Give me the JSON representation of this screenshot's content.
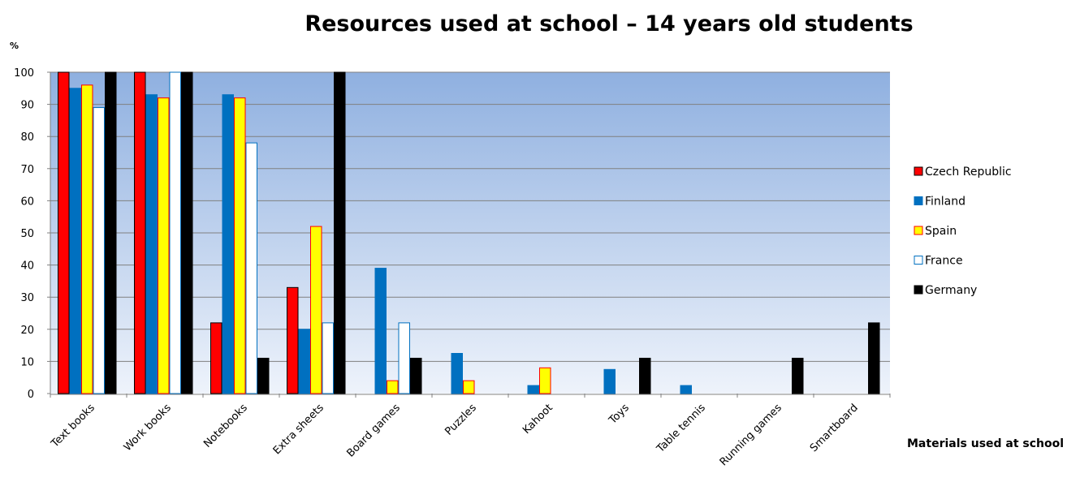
{
  "chart_data": {
    "type": "bar",
    "title": "Resources used at school – 14 years old students",
    "ylabel": "%",
    "xlabel": "Materials used at school",
    "ylim": [
      0,
      100
    ],
    "yticks": [
      0,
      10,
      20,
      30,
      40,
      50,
      60,
      70,
      80,
      90,
      100
    ],
    "grid": true,
    "legend_position": "right",
    "categories": [
      "Text books",
      "Work books",
      "Notebooks",
      "Extra sheets",
      "Board games",
      "Puzzles",
      "Kahoot",
      "Toys",
      "Table tennis",
      "Running games",
      "Smartboard"
    ],
    "series": [
      {
        "name": "Czech Republic",
        "color": "#ff0000",
        "stroke": "#000000",
        "values": [
          100,
          100,
          22,
          33,
          0,
          0,
          0,
          0,
          0,
          0,
          0
        ]
      },
      {
        "name": "Finland",
        "color": "#0070c0",
        "stroke": "#0070c0",
        "values": [
          95,
          93,
          93,
          20,
          39,
          12.5,
          2.5,
          7.5,
          2.5,
          0,
          0
        ]
      },
      {
        "name": "Spain",
        "color": "#ffff00",
        "stroke": "#ff0000",
        "values": [
          96,
          92,
          92,
          52,
          4,
          4,
          8,
          0,
          0,
          0,
          0
        ]
      },
      {
        "name": "France",
        "color": "#ffffff",
        "stroke": "#0070c0",
        "values": [
          89,
          100,
          78,
          22,
          22,
          0,
          0,
          0,
          0,
          0,
          0
        ]
      },
      {
        "name": "Germany",
        "color": "#000000",
        "stroke": "#000000",
        "values": [
          100,
          100,
          11,
          100,
          11,
          0,
          0,
          11,
          0,
          11,
          22
        ]
      }
    ]
  }
}
